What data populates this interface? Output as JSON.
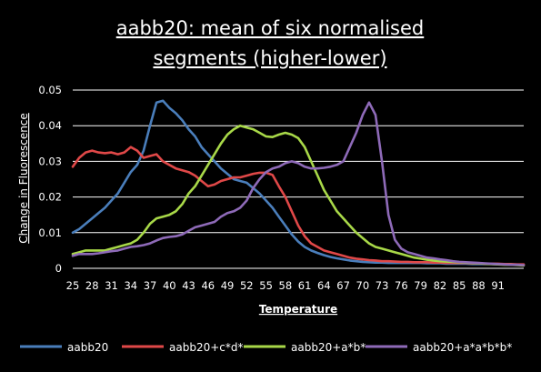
{
  "chart_data": {
    "type": "line",
    "title_line1": "aabb20: mean of six normalised",
    "title_line2": "segments (higher-lower)",
    "xlabel": "Temperature",
    "ylabel": "Change in Fluorescence",
    "ylim": [
      0,
      0.05
    ],
    "y_ticks": [
      "0",
      "0.01",
      "0.02",
      "0.03",
      "0.04",
      "0.05"
    ],
    "y_tick_values": [
      0,
      0.01,
      0.02,
      0.03,
      0.04,
      0.05
    ],
    "xlim": [
      25,
      95
    ],
    "x_ticks": [
      "25",
      "28",
      "31",
      "34",
      "37",
      "40",
      "43",
      "46",
      "49",
      "52",
      "55",
      "58",
      "61",
      "64",
      "67",
      "70",
      "73",
      "76",
      "79",
      "82",
      "85",
      "88",
      "91"
    ],
    "x_tick_values": [
      25,
      28,
      31,
      34,
      37,
      40,
      43,
      46,
      49,
      52,
      55,
      58,
      61,
      64,
      67,
      70,
      73,
      76,
      79,
      82,
      85,
      88,
      91
    ],
    "grid": "horizontal",
    "legend_position": "bottom",
    "x": [
      25,
      26,
      27,
      28,
      29,
      30,
      31,
      32,
      33,
      34,
      35,
      36,
      37,
      38,
      39,
      40,
      41,
      42,
      43,
      44,
      45,
      46,
      47,
      48,
      49,
      50,
      51,
      52,
      53,
      54,
      55,
      56,
      57,
      58,
      59,
      60,
      61,
      62,
      63,
      64,
      65,
      66,
      67,
      68,
      69,
      70,
      71,
      72,
      73,
      74,
      75,
      76,
      77,
      78,
      79,
      80,
      81,
      82,
      83,
      84,
      85,
      86,
      87,
      88,
      89,
      90,
      91,
      92,
      93,
      94,
      95
    ],
    "series": [
      {
        "name": "aabb20",
        "color": "#4a7ebb",
        "values": [
          0.01,
          0.011,
          0.0125,
          0.014,
          0.0155,
          0.017,
          0.019,
          0.021,
          0.024,
          0.027,
          0.029,
          0.033,
          0.04,
          0.0465,
          0.047,
          0.045,
          0.0435,
          0.0415,
          0.039,
          0.037,
          0.034,
          0.032,
          0.03,
          0.028,
          0.0265,
          0.025,
          0.0245,
          0.024,
          0.0225,
          0.021,
          0.019,
          0.017,
          0.0145,
          0.012,
          0.0095,
          0.0075,
          0.006,
          0.005,
          0.0043,
          0.0037,
          0.0032,
          0.0028,
          0.0025,
          0.0022,
          0.002,
          0.0018,
          0.0017,
          0.0016,
          0.0016,
          0.0015,
          0.0015,
          0.0015,
          0.0015,
          0.0015,
          0.0015,
          0.0014,
          0.0014,
          0.0014,
          0.0013,
          0.0013,
          0.0013,
          0.0013,
          0.0012,
          0.0012,
          0.0012,
          0.0012,
          0.0011,
          0.0011,
          0.0011,
          0.001,
          0.001
        ]
      },
      {
        "name": "aabb20+c*d*",
        "color": "#e04848",
        "values": [
          0.0285,
          0.031,
          0.0325,
          0.033,
          0.0325,
          0.0323,
          0.0325,
          0.032,
          0.0325,
          0.034,
          0.033,
          0.031,
          0.0315,
          0.032,
          0.03,
          0.029,
          0.028,
          0.0275,
          0.027,
          0.026,
          0.0245,
          0.023,
          0.0235,
          0.0245,
          0.025,
          0.0255,
          0.0255,
          0.026,
          0.0265,
          0.0268,
          0.0268,
          0.0262,
          0.023,
          0.02,
          0.016,
          0.012,
          0.009,
          0.007,
          0.006,
          0.005,
          0.0045,
          0.004,
          0.0035,
          0.003,
          0.0027,
          0.0025,
          0.0023,
          0.0022,
          0.002,
          0.002,
          0.0019,
          0.0018,
          0.0018,
          0.0017,
          0.0017,
          0.0017,
          0.0016,
          0.0016,
          0.0015,
          0.0015,
          0.0015,
          0.0015,
          0.0014,
          0.0014,
          0.0013,
          0.0013,
          0.0013,
          0.0012,
          0.0012,
          0.0011,
          0.0011
        ]
      },
      {
        "name": "aabb20+a*b*",
        "color": "#a8d848",
        "values": [
          0.004,
          0.0045,
          0.005,
          0.005,
          0.005,
          0.005,
          0.0055,
          0.006,
          0.0065,
          0.007,
          0.008,
          0.01,
          0.0125,
          0.014,
          0.0145,
          0.015,
          0.016,
          0.018,
          0.021,
          0.023,
          0.026,
          0.029,
          0.032,
          0.035,
          0.0375,
          0.039,
          0.04,
          0.0395,
          0.039,
          0.038,
          0.037,
          0.0368,
          0.0375,
          0.038,
          0.0375,
          0.0365,
          0.034,
          0.03,
          0.026,
          0.022,
          0.019,
          0.016,
          0.014,
          0.012,
          0.01,
          0.0085,
          0.007,
          0.006,
          0.0055,
          0.005,
          0.0045,
          0.004,
          0.0035,
          0.003,
          0.0027,
          0.0024,
          0.0022,
          0.002,
          0.0019,
          0.0018,
          0.0017,
          0.0016,
          0.0015,
          0.0014,
          0.0013,
          0.0012,
          0.0011,
          0.001,
          0.001,
          0.0009,
          0.0008
        ]
      },
      {
        "name": "aabb20+a*a*b*b*",
        "color": "#8e6ab8",
        "values": [
          0.0035,
          0.004,
          0.004,
          0.004,
          0.0042,
          0.0045,
          0.0048,
          0.005,
          0.0055,
          0.006,
          0.0062,
          0.0065,
          0.007,
          0.0078,
          0.0085,
          0.0088,
          0.009,
          0.0095,
          0.0105,
          0.0115,
          0.012,
          0.0125,
          0.013,
          0.0145,
          0.0155,
          0.016,
          0.017,
          0.019,
          0.0225,
          0.025,
          0.027,
          0.028,
          0.0285,
          0.0295,
          0.03,
          0.0295,
          0.0285,
          0.028,
          0.028,
          0.0282,
          0.0285,
          0.029,
          0.03,
          0.034,
          0.038,
          0.043,
          0.0465,
          0.043,
          0.03,
          0.015,
          0.008,
          0.0055,
          0.0045,
          0.004,
          0.0035,
          0.003,
          0.0028,
          0.0025,
          0.0023,
          0.002,
          0.0018,
          0.0017,
          0.0016,
          0.0015,
          0.0014,
          0.0013,
          0.0012,
          0.0011,
          0.001,
          0.001,
          0.0009
        ]
      }
    ]
  }
}
